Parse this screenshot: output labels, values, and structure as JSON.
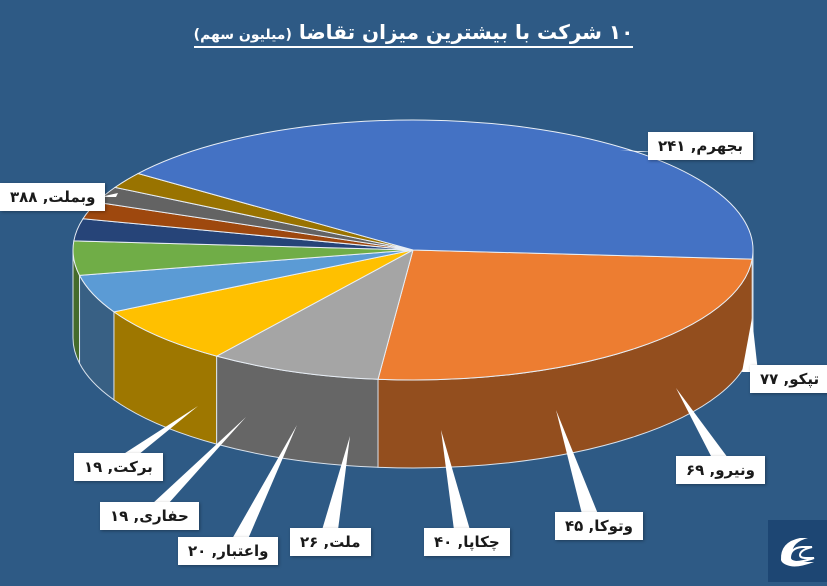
{
  "chart_data": {
    "type": "pie",
    "title": "۱۰ شرکت با بیشترین میزان تقاضا",
    "subtitle": "(میلیون سهم)",
    "slices": [
      {
        "label": "بجهرم",
        "value": 241,
        "value_text": "۲۴۱",
        "color": "#ed7d31"
      },
      {
        "label": "تپکو",
        "value": 77,
        "value_text": "۷۷",
        "color": "#a5a5a5"
      },
      {
        "label": "ونیرو",
        "value": 69,
        "value_text": "۶۹",
        "color": "#ffc000"
      },
      {
        "label": "وتوکا",
        "value": 45,
        "value_text": "۴۵",
        "color": "#5b9bd5"
      },
      {
        "label": "چکاپا",
        "value": 40,
        "value_text": "۴۰",
        "color": "#70ad47"
      },
      {
        "label": "ملت",
        "value": 26,
        "value_text": "۲۶",
        "color": "#264478"
      },
      {
        "label": "واعتبار",
        "value": 20,
        "value_text": "۲۰",
        "color": "#9e480e"
      },
      {
        "label": "حفاری",
        "value": 19,
        "value_text": "۱۹",
        "color": "#636363"
      },
      {
        "label": "برکت",
        "value": 19,
        "value_text": "۱۹",
        "color": "#997300"
      },
      {
        "label": "وبملت",
        "value": 388,
        "value_text": "۳۸۸",
        "color": "#4472c4"
      }
    ]
  },
  "logo": {
    "name": "publisher-logo-icon"
  }
}
